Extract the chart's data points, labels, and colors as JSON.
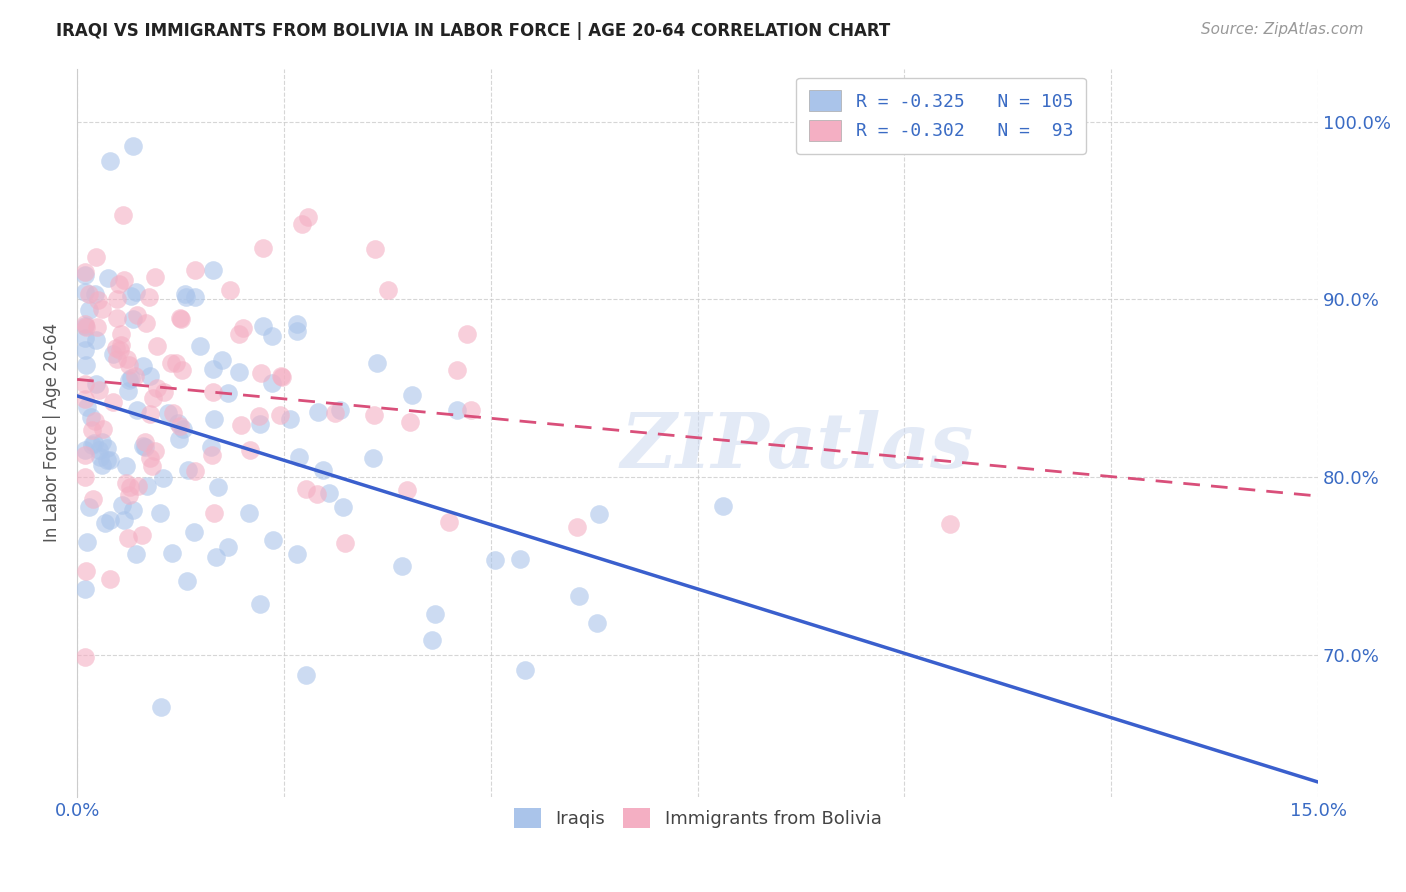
{
  "title": "IRAQI VS IMMIGRANTS FROM BOLIVIA IN LABOR FORCE | AGE 20-64 CORRELATION CHART",
  "source": "Source: ZipAtlas.com",
  "ylabel": "In Labor Force | Age 20-64",
  "ytick_labels": [
    "70.0%",
    "80.0%",
    "90.0%",
    "100.0%"
  ],
  "ytick_values": [
    0.7,
    0.8,
    0.9,
    1.0
  ],
  "xlim": [
    0.0,
    0.15
  ],
  "ylim": [
    0.62,
    1.03
  ],
  "color_iraqi": "#aac4ea",
  "color_bolivia": "#f4afc3",
  "color_line_iraqi": "#3a5fcd",
  "color_line_bolivia": "#d94f7a",
  "color_axis_text": "#3a6bc4",
  "watermark": "ZIPatlas",
  "iraqi_slope": -1.05,
  "iraqi_intercept": 0.835,
  "bolivia_slope": -0.65,
  "bolivia_intercept": 0.862
}
